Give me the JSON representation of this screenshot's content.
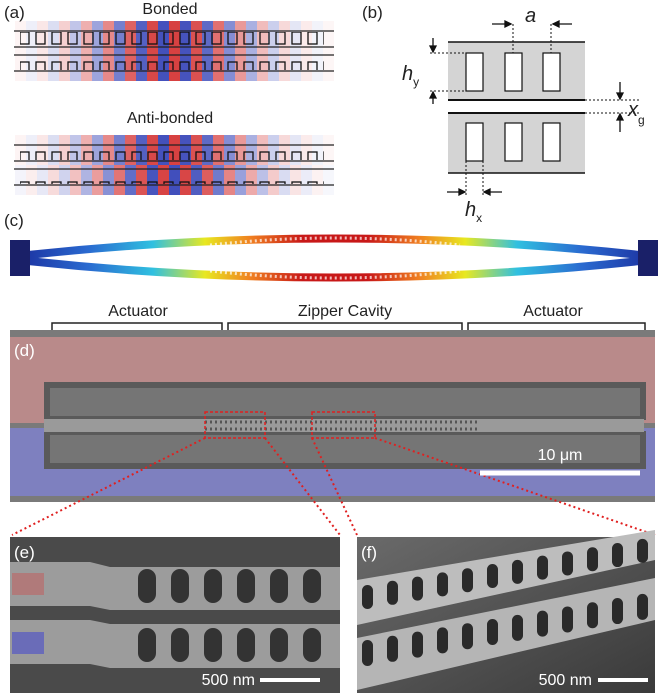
{
  "panels": {
    "a": {
      "label": "(a)",
      "bonded": "Bonded",
      "anti_bonded": "Anti-bonded"
    },
    "b": {
      "label": "(b)",
      "a": "a",
      "h_y": {
        "symbol": "h",
        "subscript": "y"
      },
      "x_g": {
        "symbol": "x",
        "subscript": "g"
      },
      "h_x": {
        "symbol": "h",
        "subscript": "x"
      }
    },
    "c": {
      "label": "(c)"
    },
    "d": {
      "label": "(d)",
      "sections": [
        "Actuator",
        "Zipper Cavity",
        "Actuator"
      ],
      "scale_bar": "10 μm"
    },
    "e": {
      "label": "(e)",
      "scale_bar": "500 nm"
    },
    "f": {
      "label": "(f)",
      "scale_bar": "500 nm"
    }
  }
}
